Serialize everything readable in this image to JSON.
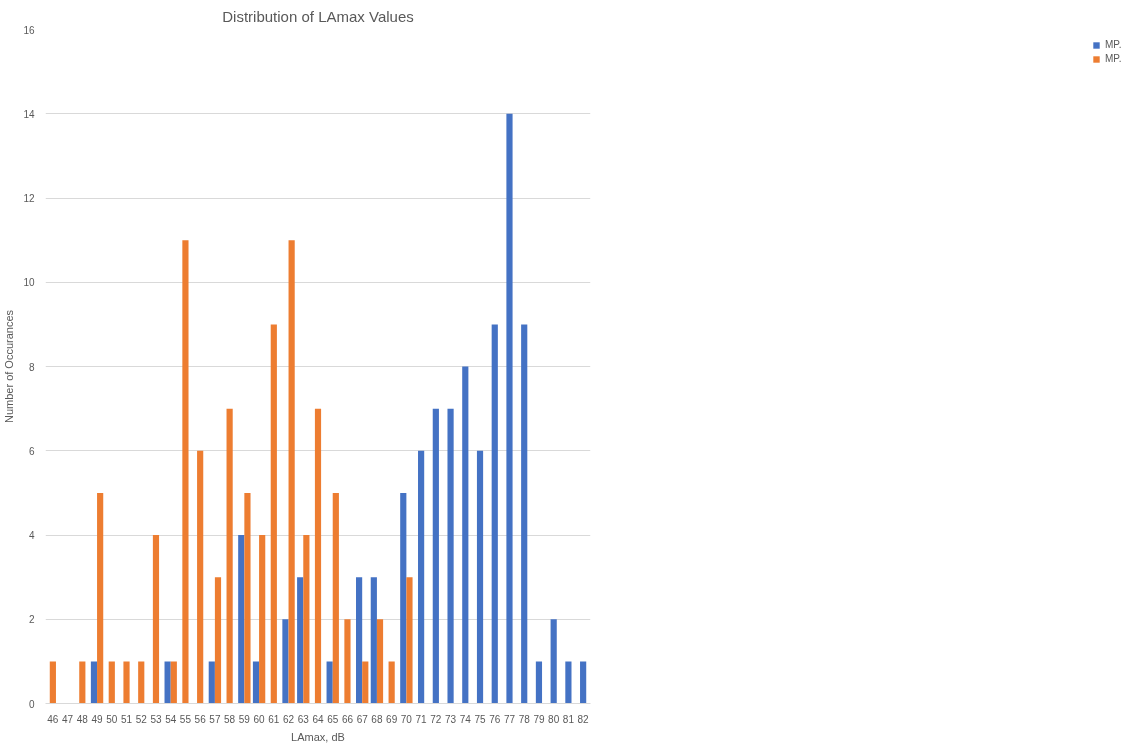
{
  "chart_data": {
    "type": "bar",
    "title": "Distribution of LAmax Values",
    "xlabel": "LAmax, dB",
    "ylabel": "Number of Occurances",
    "categories": [
      "46",
      "47",
      "48",
      "49",
      "50",
      "51",
      "52",
      "53",
      "54",
      "55",
      "56",
      "57",
      "58",
      "59",
      "60",
      "61",
      "62",
      "63",
      "64",
      "65",
      "66",
      "67",
      "68",
      "69",
      "70",
      "71",
      "72",
      "73",
      "74",
      "75",
      "76",
      "77",
      "78",
      "79",
      "80",
      "81",
      "82"
    ],
    "series": [
      {
        "name": "MP.",
        "color": "#4472c4",
        "values": [
          null,
          null,
          null,
          1,
          null,
          null,
          null,
          null,
          1,
          null,
          null,
          1,
          null,
          4,
          1,
          null,
          2,
          3,
          null,
          1,
          null,
          3,
          3,
          null,
          5,
          6,
          7,
          7,
          8,
          6,
          9,
          14,
          9,
          1,
          2,
          1,
          1
        ]
      },
      {
        "name": "MP.",
        "color": "#ed7d31",
        "values": [
          1,
          null,
          1,
          5,
          1,
          1,
          1,
          4,
          1,
          11,
          6,
          3,
          7,
          5,
          4,
          9,
          11,
          4,
          7,
          5,
          2,
          1,
          2,
          1,
          3,
          null,
          null,
          null,
          null,
          null,
          null,
          null,
          null,
          null,
          null,
          null,
          null
        ]
      }
    ],
    "ylim": [
      0,
      16
    ],
    "yticks": [
      0,
      2,
      4,
      6,
      8,
      10,
      12,
      14,
      16
    ],
    "grid": "y",
    "legend": "right"
  }
}
